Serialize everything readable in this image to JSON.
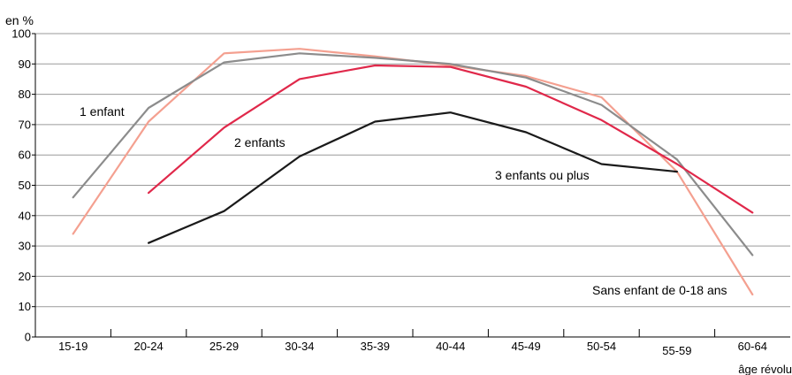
{
  "chart_data": {
    "type": "line",
    "ylabel": "en %",
    "xlabel": "âge révolu",
    "ylim": [
      0,
      100
    ],
    "yticks": [
      0,
      10,
      20,
      30,
      40,
      50,
      60,
      70,
      80,
      90,
      100
    ],
    "grid": "horizontal",
    "categories": [
      "15-19",
      "20-24",
      "25-29",
      "30-34",
      "35-39",
      "40-44",
      "45-49",
      "50-54",
      "55-59",
      "60-64"
    ],
    "series": [
      {
        "name": "1 enfant",
        "color": "#8c8c8c",
        "values": [
          46,
          75.5,
          90.5,
          93.5,
          92,
          90,
          85.5,
          76.5,
          58.5,
          27
        ]
      },
      {
        "name": "2 enfants",
        "color": "#e0284a",
        "values": [
          null,
          47.5,
          69,
          85,
          89.5,
          89,
          82.5,
          71.5,
          57,
          41
        ]
      },
      {
        "name": "3 enfants ou plus",
        "color": "#1a1a1a",
        "values": [
          null,
          31,
          41.5,
          59.5,
          71,
          74,
          67.5,
          57,
          54.5,
          null
        ]
      },
      {
        "name": "Sans enfant de 0-18 ans",
        "color": "#f4a090",
        "values": [
          34,
          71,
          93.5,
          95,
          92.5,
          89.5,
          86,
          79,
          54.5,
          14
        ]
      }
    ]
  }
}
